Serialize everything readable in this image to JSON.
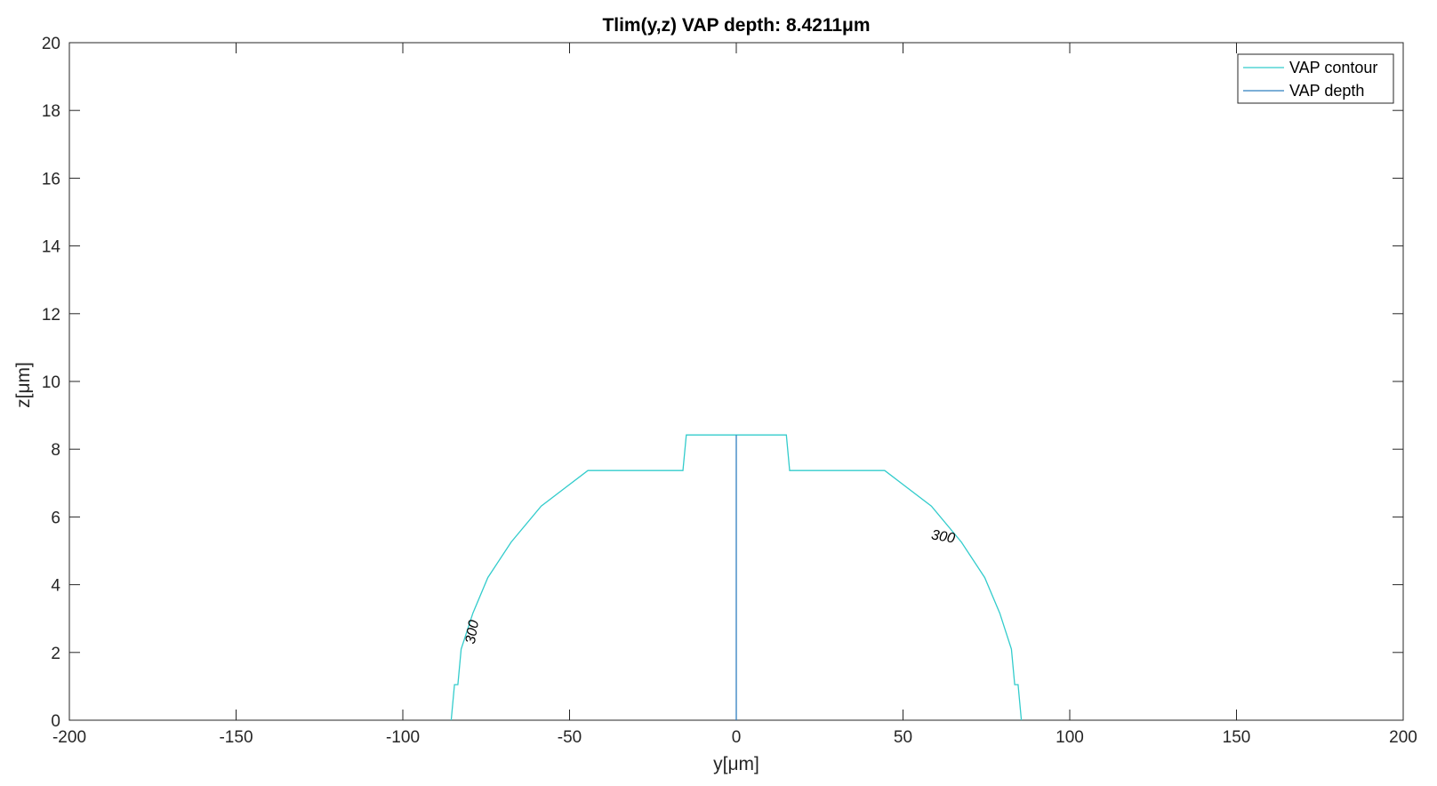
{
  "chart_data": {
    "type": "line",
    "title": "Tlim(y,z) VAP depth: 8.4211μm",
    "xlabel": "y[μm]",
    "ylabel": "z[μm]",
    "xlim": [
      -200,
      200
    ],
    "ylim": [
      0,
      20
    ],
    "xticks": [
      -200,
      -150,
      -100,
      -50,
      0,
      50,
      100,
      150,
      200
    ],
    "yticks": [
      0,
      2,
      4,
      6,
      8,
      10,
      12,
      14,
      16,
      18,
      20
    ],
    "xtick_labels": [
      "-200",
      "-150",
      "-100",
      "-50",
      "0",
      "50",
      "100",
      "150",
      "200"
    ],
    "ytick_labels": [
      "0",
      "2",
      "4",
      "6",
      "8",
      "10",
      "12",
      "14",
      "16",
      "18",
      "20"
    ],
    "grid": false,
    "legend_position": "top-right",
    "series": [
      {
        "name": "VAP contour",
        "color": "#33cccc",
        "x": [
          -85.5,
          -84.5,
          -83.5,
          -83.5,
          -82.5,
          -82.5,
          -79,
          -79,
          -74.5,
          -74.5,
          -67.5,
          -67.5,
          -58.5,
          -58.5,
          -44.5,
          -44.5,
          -16,
          -15,
          15,
          16,
          44.5,
          44.5,
          58.5,
          58.5,
          67.5,
          67.5,
          74.5,
          74.5,
          79,
          79,
          82.5,
          82.5,
          83.5,
          83.5,
          84.5,
          85.5
        ],
        "y": [
          0,
          1.05,
          1.05,
          1.05,
          2.1,
          2.1,
          3.16,
          3.16,
          4.21,
          4.21,
          5.26,
          5.26,
          6.32,
          6.32,
          7.37,
          7.37,
          7.37,
          8.42,
          8.42,
          7.37,
          7.37,
          7.37,
          6.32,
          6.32,
          5.26,
          5.26,
          4.21,
          4.21,
          3.16,
          3.16,
          2.1,
          2.1,
          1.05,
          1.05,
          1.05,
          0
        ]
      },
      {
        "name": "VAP depth",
        "color": "#2f7fbf",
        "x": [
          0,
          0
        ],
        "y": [
          0,
          8.4211
        ]
      }
    ],
    "contour_labels": [
      {
        "text": "300",
        "x": -79,
        "y": 2.6,
        "angle": -80
      },
      {
        "text": "300",
        "x": 62,
        "y": 5.4,
        "angle": 10
      }
    ]
  }
}
